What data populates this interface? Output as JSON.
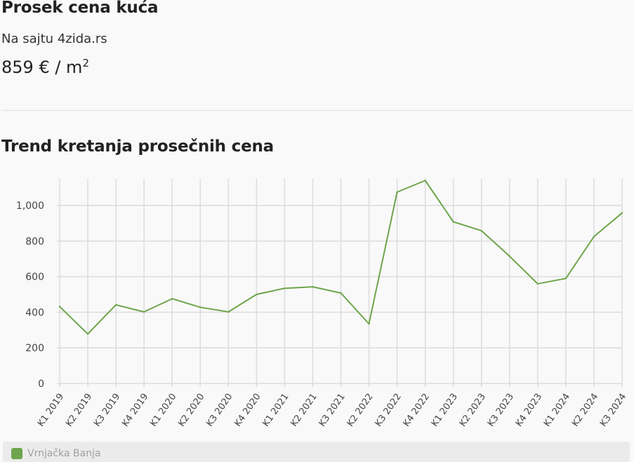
{
  "header": {
    "title": "Prosek cena kuća",
    "subtitle": "Na sajtu 4zida.rs",
    "price_value": "859 € / m",
    "price_sup": "2"
  },
  "trend": {
    "title": "Trend kretanja prosečnih cena"
  },
  "colors": {
    "series": "#6ea54c",
    "grid": "#dcdcdc",
    "background": "#f9f9f9"
  },
  "chart_data": {
    "type": "line",
    "title": "Trend kretanja prosečnih cena",
    "xlabel": "",
    "ylabel": "",
    "ylim": [
      0,
      1150
    ],
    "yticks": [
      0,
      200,
      400,
      600,
      800,
      1000
    ],
    "ytick_labels": [
      "0",
      "200",
      "400",
      "600",
      "800",
      "1,000"
    ],
    "grid": true,
    "legend": "bottom",
    "categories": [
      "K1 2019",
      "K2 2019",
      "K3 2019",
      "K4 2019",
      "K1 2020",
      "K2 2020",
      "K3 2020",
      "K4 2020",
      "K1 2021",
      "K2 2021",
      "K3 2021",
      "K2 2022",
      "K3 2022",
      "K4 2022",
      "K1 2023",
      "K2 2023",
      "K3 2023",
      "K4 2023",
      "K1 2024",
      "K2 2024",
      "K3 2024"
    ],
    "series": [
      {
        "name": "Vrnjačka Banja",
        "color": "#6ea54c",
        "values": [
          432,
          278,
          442,
          402,
          476,
          428,
          402,
          500,
          535,
          543,
          508,
          335,
          1075,
          1140,
          908,
          858,
          715,
          560,
          590,
          825,
          958
        ]
      }
    ]
  }
}
